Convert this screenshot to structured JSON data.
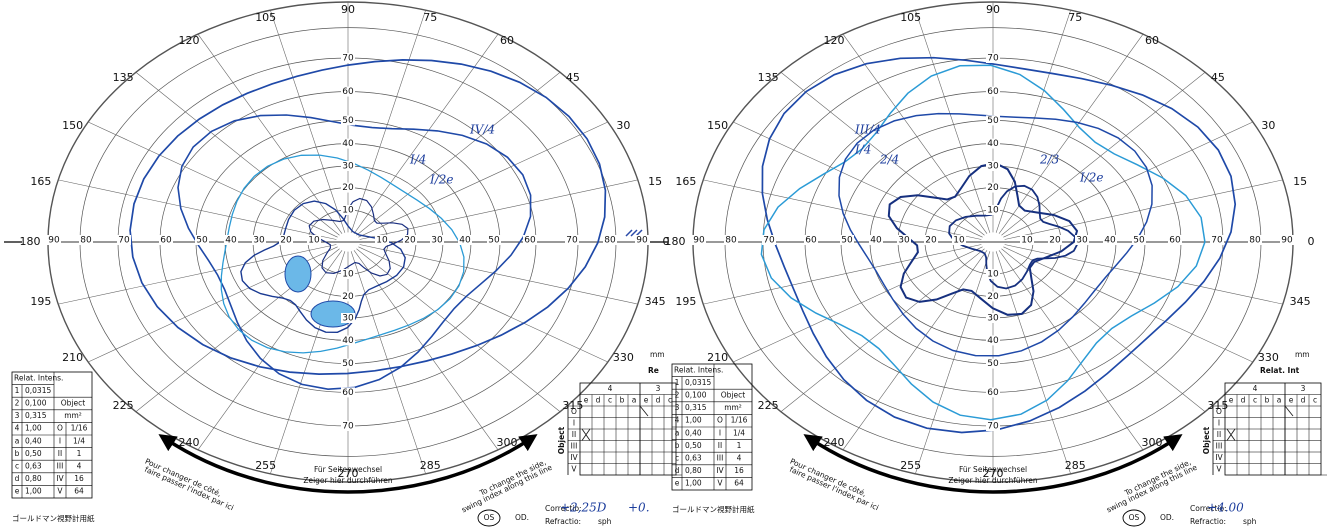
{
  "panels": [
    {
      "angle_labels": [
        0,
        15,
        30,
        45,
        60,
        75,
        90,
        105,
        120,
        135,
        150,
        165,
        180,
        195,
        210,
        225,
        240,
        255,
        270,
        285,
        300,
        315,
        330,
        345
      ],
      "ecc_up": [
        10,
        20,
        30,
        40,
        50,
        60,
        70
      ],
      "ecc_down": [
        10,
        20,
        30,
        40,
        50,
        60,
        70
      ],
      "ecc_left": [
        90,
        80,
        70,
        60,
        50,
        40,
        30,
        20,
        10
      ],
      "ecc_right": [
        10,
        20,
        30,
        40,
        50,
        60,
        70,
        80,
        90
      ],
      "side_change": {
        "left": [
          "Pour changer de côté,",
          "faire passer l'index par ici"
        ],
        "center": [
          "Für Seitenwechsel",
          "Zeiger hier durchführen"
        ],
        "right": [
          "To change the side,",
          "swing index along this line"
        ]
      },
      "intensity_table": {
        "header": "Relat. Intens.",
        "rows": [
          [
            "1",
            "0,0315"
          ],
          [
            "2",
            "0,100"
          ],
          [
            "3",
            "0,315"
          ],
          [
            "4",
            "1,00"
          ],
          [
            "a",
            "0,40"
          ],
          [
            "b",
            "0,50"
          ],
          [
            "c",
            "0,63"
          ],
          [
            "d",
            "0,80"
          ],
          [
            "e",
            "1,00"
          ]
        ],
        "object_header": "Object",
        "area_unit": "mm²",
        "objects": [
          [
            "O",
            "1/16"
          ],
          [
            "I",
            "1/4"
          ],
          [
            "II",
            "1"
          ],
          [
            "III",
            "4"
          ],
          [
            "IV",
            "16"
          ],
          [
            "V",
            "64"
          ]
        ]
      },
      "caption": "ゴールドマン視野計用紙",
      "grid_table": {
        "header": "Re",
        "groups": [
          "4",
          "3"
        ],
        "subcols": [
          "e",
          "d",
          "c",
          "b",
          "a",
          "e",
          "d",
          "c"
        ],
        "rows": [
          "O",
          "I",
          "II",
          "III",
          "IV",
          "V"
        ],
        "label": "Object"
      },
      "unit": "mm",
      "footer": {
        "correction": "Correctio:",
        "refraction": "Refractio:",
        "sph": "sph",
        "os": "OS",
        "od": "OD."
      },
      "handwriting": [
        "+2,25D",
        "+0.",
        "IV/4",
        "I/4",
        "I/2e"
      ]
    },
    {
      "angle_labels": [
        0,
        15,
        30,
        45,
        60,
        75,
        90,
        105,
        120,
        135,
        150,
        165,
        180,
        195,
        210,
        225,
        240,
        255,
        270,
        285,
        300,
        315,
        330,
        345
      ],
      "ecc_up": [
        10,
        20,
        30,
        40,
        50,
        60,
        70
      ],
      "ecc_down": [
        10,
        20,
        30,
        40,
        50,
        60,
        70
      ],
      "ecc_left": [
        90,
        80,
        70,
        60,
        50,
        40,
        30,
        20,
        10
      ],
      "ecc_right": [
        10,
        20,
        30,
        40,
        50,
        60,
        70,
        80,
        90
      ],
      "side_change": {
        "left": [
          "Pour changer de côté,",
          "faire passer l'index par ici"
        ],
        "center": [
          "Für Seitenwechsel",
          "Zeiger hier durchführen"
        ],
        "right": [
          "To change the side,",
          "swing index along this line"
        ]
      },
      "intensity_table": {
        "header": "Relat. Intens.",
        "rows": [
          [
            "1",
            "0,0315"
          ],
          [
            "2",
            "0,100"
          ],
          [
            "3",
            "0,315"
          ],
          [
            "4",
            "1,00"
          ],
          [
            "a",
            "0,40"
          ],
          [
            "b",
            "0,50"
          ],
          [
            "c",
            "0,63"
          ],
          [
            "d",
            "0,80"
          ],
          [
            "e",
            "1,00"
          ]
        ],
        "object_header": "Object",
        "area_unit": "mm²",
        "objects": [
          [
            "O",
            "1/16"
          ],
          [
            "I",
            "1/4"
          ],
          [
            "II",
            "1"
          ],
          [
            "III",
            "4"
          ],
          [
            "IV",
            "16"
          ],
          [
            "V",
            "64"
          ]
        ]
      },
      "caption": "ゴールドマン視野計用紙",
      "grid_table": {
        "header": "Relat. Int",
        "groups": [
          "4",
          "3"
        ],
        "subcols": [
          "e",
          "d",
          "c",
          "b",
          "a",
          "e",
          "d",
          "c"
        ],
        "rows": [
          "O",
          "I",
          "II",
          "III",
          "IV",
          "V"
        ],
        "label": "Object"
      },
      "unit": "mm",
      "footer": {
        "correction": "Correctio:",
        "refraction": "Refractio:",
        "sph": "sph",
        "os": "OS",
        "od": "OD."
      },
      "handwriting": [
        "+4.00",
        "III/4",
        "I/4",
        "2/4",
        "2/3",
        "I/2e"
      ]
    }
  ]
}
